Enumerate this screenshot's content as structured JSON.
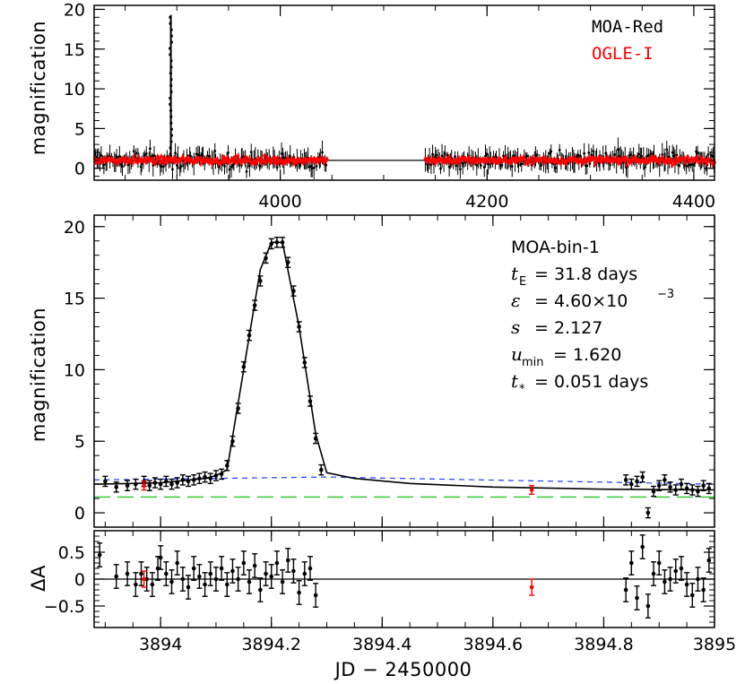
{
  "chart_data": [
    {
      "type": "scatter",
      "panel": "full-light-curve",
      "ylabel": "magnification",
      "xlim": [
        3820,
        4420
      ],
      "ylim": [
        -1.5,
        20.5
      ],
      "x_ticks": [
        "4000",
        "4200",
        "4400"
      ],
      "x_tick_values": [
        4000,
        4200,
        4400
      ],
      "y_ticks": [
        "0",
        "5",
        "10",
        "15",
        "20"
      ],
      "y_tick_values": [
        0,
        5,
        10,
        15,
        20
      ],
      "legend": [
        {
          "name": "MOA-Red",
          "color": "#000000"
        },
        {
          "name": "OGLE-I",
          "color": "#ff0000"
        }
      ],
      "series": [
        {
          "name": "MOA-Red",
          "seasons": [
            [
              3820,
              4045
            ],
            [
              4140,
              4420
            ]
          ],
          "baseline": 1.0,
          "scatter": 1.8,
          "peak_x": 3894.2,
          "peak_y": 19.0
        },
        {
          "name": "OGLE-I",
          "seasons": [
            [
              3820,
              4045
            ],
            [
              4140,
              4420
            ]
          ],
          "baseline": 1.0,
          "scatter": 0.35
        },
        {
          "name": "model",
          "color": "#000000",
          "x": [
            3820,
            4420
          ],
          "y": [
            1.0,
            1.0
          ]
        }
      ]
    },
    {
      "type": "line",
      "panel": "zoom",
      "ylabel": "magnification",
      "xlim": [
        3893.88,
        3895.0
      ],
      "ylim": [
        -1.0,
        20.8
      ],
      "y_ticks": [
        "0",
        "5",
        "10",
        "15",
        "20"
      ],
      "y_tick_values": [
        0,
        5,
        10,
        15,
        20
      ],
      "annotation": {
        "title": "MOA-bin-1",
        "tE": "= 31.8 days",
        "epsilon": "= 4.60×10",
        "epsilon_exp": "−3",
        "s": "= 2.127",
        "umin": "= 1.620",
        "tstar": "= 0.051 days"
      },
      "series": [
        {
          "name": "model",
          "color": "#000000",
          "x": [
            3893.88,
            3893.95,
            3894.0,
            3894.08,
            3894.1,
            3894.12,
            3894.15,
            3894.18,
            3894.2,
            3894.22,
            3894.25,
            3894.28,
            3894.3,
            3894.35,
            3894.45,
            3894.6,
            3894.8,
            3895.0
          ],
          "y": [
            2.0,
            2.05,
            2.1,
            2.4,
            2.6,
            3.0,
            10.0,
            17.0,
            18.9,
            18.9,
            13.0,
            5.5,
            2.8,
            2.4,
            2.05,
            1.8,
            1.65,
            1.6
          ]
        },
        {
          "name": "blue-dashed",
          "color": "#1f3cff",
          "x": [
            3893.88,
            3894.3,
            3895.0
          ],
          "y": [
            2.3,
            2.5,
            2.0
          ]
        },
        {
          "name": "green-dashed",
          "color": "#22cc22",
          "x": [
            3893.88,
            3895.0
          ],
          "y": [
            1.1,
            1.1
          ]
        },
        {
          "name": "MOA-bin",
          "color": "#000000",
          "x": [
            3893.9,
            3893.92,
            3893.94,
            3893.955,
            3893.97,
            3893.98,
            3893.99,
            3894.0,
            3894.01,
            3894.02,
            3894.03,
            3894.04,
            3894.05,
            3894.06,
            3894.07,
            3894.08,
            3894.09,
            3894.1,
            3894.11,
            3894.12,
            3894.13,
            3894.14,
            3894.15,
            3894.16,
            3894.17,
            3894.18,
            3894.19,
            3894.2,
            3894.21,
            3894.22,
            3894.23,
            3894.24,
            3894.25,
            3894.26,
            3894.27,
            3894.28,
            3894.29,
            3894.84,
            3894.85,
            3894.86,
            3894.87,
            3894.88,
            3894.89,
            3894.9,
            3894.91,
            3894.92,
            3894.93,
            3894.94,
            3894.95,
            3894.96,
            3894.97,
            3894.98,
            3894.99
          ],
          "y": [
            2.2,
            1.8,
            1.9,
            2.0,
            2.2,
            1.9,
            2.1,
            2.0,
            2.2,
            2.0,
            2.1,
            2.3,
            2.2,
            2.3,
            2.4,
            2.5,
            2.4,
            2.6,
            2.7,
            3.3,
            5.0,
            7.3,
            10.2,
            12.4,
            14.5,
            16.2,
            17.8,
            18.8,
            18.9,
            18.9,
            17.5,
            15.5,
            13.0,
            10.5,
            7.8,
            5.2,
            3.0,
            2.3,
            2.0,
            2.2,
            2.5,
            0.0,
            1.5,
            1.9,
            2.3,
            1.8,
            1.6,
            2.0,
            1.7,
            1.6,
            1.5,
            1.9,
            1.7
          ],
          "err": 0.35
        },
        {
          "name": "OGLE-I",
          "color": "#ff0000",
          "x": [
            3893.97,
            3894.67
          ],
          "y": [
            1.9,
            1.6
          ],
          "err": 0.3
        }
      ]
    },
    {
      "type": "scatter",
      "panel": "residuals",
      "ylabel": "ΔA",
      "xlabel": "JD − 2450000",
      "xlim": [
        3893.88,
        3895.0
      ],
      "ylim": [
        -0.9,
        0.9
      ],
      "x_ticks": [
        "3894",
        "3894.2",
        "3894.4",
        "3894.6",
        "3894.8",
        "3895"
      ],
      "x_tick_values": [
        3894.0,
        3894.2,
        3894.4,
        3894.6,
        3894.8,
        3895.0
      ],
      "y_ticks": [
        "0.5",
        "0",
        "−0.5"
      ],
      "y_tick_values": [
        0.5,
        0,
        -0.5
      ],
      "series": [
        {
          "name": "MOA-bin",
          "color": "#000000",
          "x": [
            3893.89,
            3893.92,
            3893.94,
            3893.955,
            3893.965,
            3893.975,
            3893.985,
            3893.995,
            3894.0,
            3894.01,
            3894.02,
            3894.03,
            3894.04,
            3894.05,
            3894.06,
            3894.07,
            3894.08,
            3894.09,
            3894.1,
            3894.11,
            3894.12,
            3894.13,
            3894.14,
            3894.15,
            3894.16,
            3894.17,
            3894.18,
            3894.19,
            3894.2,
            3894.21,
            3894.22,
            3894.23,
            3894.24,
            3894.25,
            3894.26,
            3894.27,
            3894.28,
            3894.84,
            3894.85,
            3894.86,
            3894.87,
            3894.88,
            3894.89,
            3894.9,
            3894.91,
            3894.92,
            3894.93,
            3894.94,
            3894.95,
            3894.96,
            3894.97,
            3894.98,
            3894.99
          ],
          "y": [
            0.45,
            0.05,
            0.1,
            -0.1,
            0.1,
            0.0,
            -0.1,
            0.2,
            0.4,
            0.1,
            -0.05,
            0.3,
            0.0,
            -0.15,
            0.2,
            0.05,
            -0.1,
            0.1,
            0.0,
            0.2,
            -0.1,
            0.15,
            0.0,
            0.3,
            -0.05,
            0.25,
            -0.2,
            0.1,
            0.05,
            0.3,
            -0.05,
            0.35,
            0.15,
            -0.25,
            0.1,
            0.2,
            -0.3,
            -0.2,
            0.3,
            -0.35,
            0.6,
            -0.5,
            0.1,
            0.3,
            -0.05,
            0.0,
            0.15,
            0.2,
            -0.1,
            -0.3,
            0.0,
            -0.2,
            0.35
          ],
          "err": 0.22
        },
        {
          "name": "OGLE-I",
          "color": "#ff0000",
          "x": [
            3893.97,
            3894.67
          ],
          "y": [
            0.0,
            -0.15
          ],
          "err": 0.15
        }
      ]
    }
  ]
}
